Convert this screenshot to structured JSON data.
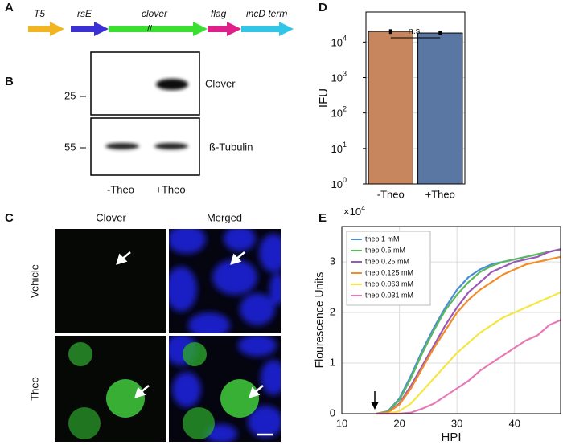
{
  "panel_labels": [
    "A",
    "B",
    "C",
    "D",
    "E"
  ],
  "construct": {
    "genes": [
      {
        "label": "T5",
        "color": "#f2b51f"
      },
      {
        "label": "rsE",
        "color": "#3b2fd6"
      },
      {
        "label": "clover",
        "color": "#39e02f"
      },
      {
        "label": "flag",
        "color": "#e0208a"
      },
      {
        "label": "incD term",
        "color": "#31c6e8"
      }
    ]
  },
  "blot": {
    "markers": [
      "25",
      "55"
    ],
    "bands": [
      "Clover",
      "ß-Tubulin"
    ],
    "lanes": [
      "-Theo",
      "+Theo"
    ]
  },
  "microscopy": {
    "columns": [
      "Clover",
      "Merged"
    ],
    "rows": [
      "Vehicle",
      "Theo"
    ]
  },
  "chart_data": [
    {
      "type": "bar",
      "y_label": "IFU",
      "categories": [
        "-Theo",
        "+Theo"
      ],
      "values": [
        20000,
        18000
      ],
      "errors": [
        3000,
        2500
      ],
      "colors": [
        "#c8865e",
        "#5a76a2"
      ],
      "log_scale": true,
      "grid": true,
      "ylim": [
        1,
        70000
      ],
      "yticks": [
        {
          "value": 1,
          "label": "10",
          "power": "0"
        },
        {
          "value": 10,
          "label": "10",
          "power": "1"
        },
        {
          "value": 100,
          "label": "10",
          "power": "2"
        },
        {
          "value": 1000,
          "label": "10",
          "power": "3"
        },
        {
          "value": 10000,
          "label": "10",
          "power": "4"
        }
      ],
      "annotation": "n.s."
    },
    {
      "type": "line",
      "x_label": "HPI",
      "y_label": "Flourescence Units",
      "y_multiplier": {
        "base": "×10",
        "power": "4"
      },
      "x": [
        16,
        18,
        20,
        22,
        24,
        26,
        28,
        30,
        32,
        34,
        36,
        38,
        40,
        42,
        44,
        46,
        48
      ],
      "xlim": [
        10,
        48
      ],
      "xticks": [
        10,
        20,
        30,
        40
      ],
      "ylim": [
        0,
        3.7
      ],
      "yticks": [
        0,
        1,
        2,
        3
      ],
      "grid": true,
      "legend": "upper left",
      "series": [
        {
          "name": "theo 1 mM",
          "color": "#4a8fd6",
          "values": [
            0,
            0.05,
            0.3,
            0.75,
            1.25,
            1.7,
            2.1,
            2.45,
            2.7,
            2.85,
            2.95,
            3.0,
            3.05,
            3.1,
            3.15,
            3.2,
            3.25
          ]
        },
        {
          "name": "theo 0.5 mM",
          "color": "#5cb85c",
          "values": [
            0,
            0.04,
            0.27,
            0.7,
            1.2,
            1.65,
            2.05,
            2.35,
            2.6,
            2.8,
            2.92,
            3.0,
            3.05,
            3.1,
            3.15,
            3.2,
            3.25
          ]
        },
        {
          "name": "theo 0.25 mM",
          "color": "#9b59b6",
          "values": [
            0,
            0.02,
            0.2,
            0.55,
            0.95,
            1.35,
            1.75,
            2.1,
            2.4,
            2.6,
            2.8,
            2.9,
            3.0,
            3.05,
            3.1,
            3.2,
            3.25
          ]
        },
        {
          "name": "theo 0.125 mM",
          "color": "#f28c28",
          "values": [
            0,
            0.02,
            0.18,
            0.5,
            0.9,
            1.3,
            1.65,
            2.0,
            2.25,
            2.45,
            2.6,
            2.75,
            2.85,
            2.95,
            3.0,
            3.05,
            3.1
          ]
        },
        {
          "name": "theo 0.063 mM",
          "color": "#f5e642",
          "values": [
            0,
            0,
            0.05,
            0.2,
            0.45,
            0.7,
            0.95,
            1.2,
            1.4,
            1.6,
            1.75,
            1.9,
            2.0,
            2.1,
            2.2,
            2.3,
            2.4
          ]
        },
        {
          "name": "theo 0.031 mM",
          "color": "#e879b5",
          "values": [
            0,
            0,
            0,
            0.02,
            0.1,
            0.2,
            0.35,
            0.5,
            0.65,
            0.85,
            1.0,
            1.15,
            1.3,
            1.45,
            1.55,
            1.75,
            1.85
          ]
        }
      ]
    }
  ]
}
